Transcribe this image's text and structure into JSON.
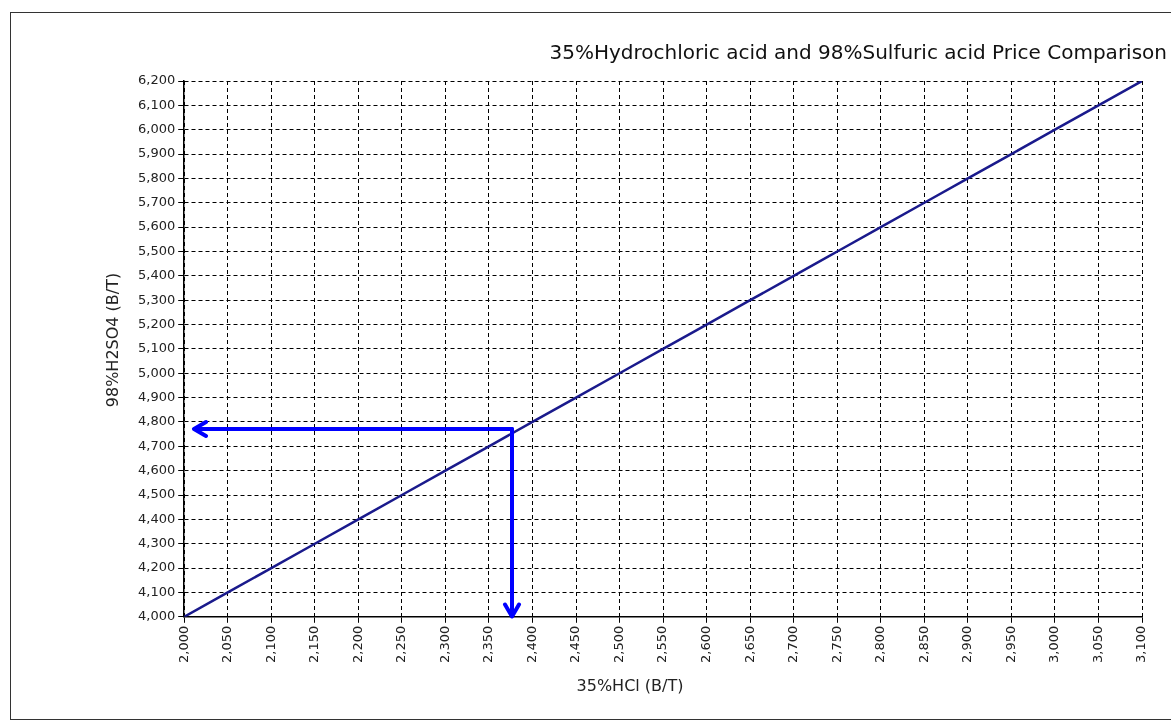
{
  "chart_data": {
    "type": "line",
    "title": "35%Hydrochloric acid and 98%Sulfuric acid Price Comparison",
    "xlabel": "35%HCl (B/T)",
    "ylabel": "98%H2SO4 (B/T)",
    "x": [
      2000,
      2050,
      2100,
      2150,
      2200,
      2250,
      2300,
      2350,
      2400,
      2450,
      2500,
      2550,
      2600,
      2650,
      2700,
      2750,
      2800,
      2850,
      2900,
      2950,
      3000,
      3050,
      3100
    ],
    "series": [
      {
        "color": "#1a1a8c",
        "values": [
          4000,
          4100,
          4200,
          4300,
          4400,
          4500,
          4600,
          4700,
          4800,
          4900,
          5000,
          5100,
          5200,
          5300,
          5400,
          5500,
          5600,
          5700,
          5800,
          5900,
          6000,
          6100,
          6200
        ]
      }
    ],
    "xlim": [
      2000,
      3100
    ],
    "xticks": [
      {
        "value": 2000,
        "label": "2,000"
      },
      {
        "value": 2050,
        "label": "2,050"
      },
      {
        "value": 2100,
        "label": "2,100"
      },
      {
        "value": 2150,
        "label": "2,150"
      },
      {
        "value": 2200,
        "label": "2,200"
      },
      {
        "value": 2250,
        "label": "2,250"
      },
      {
        "value": 2300,
        "label": "2,300"
      },
      {
        "value": 2350,
        "label": "2,350"
      },
      {
        "value": 2400,
        "label": "2,400"
      },
      {
        "value": 2450,
        "label": "2,450"
      },
      {
        "value": 2500,
        "label": "2,500"
      },
      {
        "value": 2550,
        "label": "2,550"
      },
      {
        "value": 2600,
        "label": "2,600"
      },
      {
        "value": 2650,
        "label": "2,650"
      },
      {
        "value": 2700,
        "label": "2,700"
      },
      {
        "value": 2750,
        "label": "2,750"
      },
      {
        "value": 2800,
        "label": "2,800"
      },
      {
        "value": 2850,
        "label": "2,850"
      },
      {
        "value": 2900,
        "label": "2,900"
      },
      {
        "value": 2950,
        "label": "2,950"
      },
      {
        "value": 3000,
        "label": "3,000"
      },
      {
        "value": 3050,
        "label": "3,050"
      },
      {
        "value": 3100,
        "label": "3,100"
      }
    ],
    "ylim": [
      4000,
      6200
    ],
    "yticks": [
      {
        "value": 4000,
        "label": "4,000"
      },
      {
        "value": 4100,
        "label": "4,100"
      },
      {
        "value": 4200,
        "label": "4,200"
      },
      {
        "value": 4300,
        "label": "4,300"
      },
      {
        "value": 4400,
        "label": "4,400"
      },
      {
        "value": 4500,
        "label": "4,500"
      },
      {
        "value": 4600,
        "label": "4,600"
      },
      {
        "value": 4700,
        "label": "4,700"
      },
      {
        "value": 4800,
        "label": "4,800"
      },
      {
        "value": 4900,
        "label": "4,900"
      },
      {
        "value": 5000,
        "label": "5,000"
      },
      {
        "value": 5100,
        "label": "5,100"
      },
      {
        "value": 5200,
        "label": "5,200"
      },
      {
        "value": 5300,
        "label": "5,300"
      },
      {
        "value": 5400,
        "label": "5,400"
      },
      {
        "value": 5500,
        "label": "5,500"
      },
      {
        "value": 5600,
        "label": "5,600"
      },
      {
        "value": 5700,
        "label": "5,700"
      },
      {
        "value": 5800,
        "label": "5,800"
      },
      {
        "value": 5900,
        "label": "5,900"
      },
      {
        "value": 6000,
        "label": "6,000"
      },
      {
        "value": 6100,
        "label": "6,100"
      },
      {
        "value": 6200,
        "label": "6,200"
      }
    ],
    "grid": true,
    "legend": false,
    "marker": "none",
    "line_style": "solid"
  }
}
